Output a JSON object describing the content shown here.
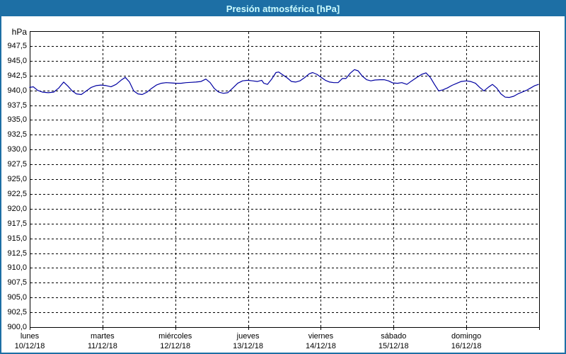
{
  "window": {
    "title": "Presión atmosférica [hPa]"
  },
  "colors": {
    "title_bar_bg": "#1d6fa5",
    "title_text": "#ccfcff",
    "frame_border": "#1d6fa5",
    "panel_bg": "#ffffff",
    "grid": "#000000",
    "axis": "#000000",
    "series_line": "#0000a1",
    "label_text": "#000000"
  },
  "axis": {
    "unit_label": "hPa"
  },
  "chart_data": {
    "type": "line",
    "title": "Presión atmosférica [hPa]",
    "ylabel": "hPa",
    "ylim": [
      900,
      950
    ],
    "ytick_step": 2.5,
    "yticks": [
      947.5,
      945.0,
      942.5,
      940.0,
      937.5,
      935.0,
      932.5,
      930.0,
      927.5,
      925.0,
      922.5,
      920.0,
      917.5,
      915.0,
      912.5,
      910.0,
      907.5,
      905.0,
      902.5,
      900.0
    ],
    "ytick_labels": [
      "947,5",
      "945,0",
      "942,5",
      "940,0",
      "937,5",
      "935,0",
      "932,5",
      "930,0",
      "927,5",
      "925,0",
      "922,5",
      "920,0",
      "917,5",
      "915,0",
      "912,5",
      "910,0",
      "907,5",
      "905,0",
      "902,5",
      "900,0"
    ],
    "grid": "dashed-black",
    "legend_position": "none",
    "x_axis": {
      "unit": "hours_since_monday_00h",
      "xlim": [
        0,
        168
      ],
      "hours_per_day": 24,
      "day_ticks": [
        {
          "name": "lunes",
          "date": "10/12/18"
        },
        {
          "name": "martes",
          "date": "11/12/18"
        },
        {
          "name": "miércoles",
          "date": "12/12/18"
        },
        {
          "name": "jueves",
          "date": "13/12/18"
        },
        {
          "name": "viernes",
          "date": "14/12/18"
        },
        {
          "name": "sábado",
          "date": "15/12/18"
        },
        {
          "name": "domingo",
          "date": "16/12/18"
        }
      ]
    },
    "series": [
      {
        "name": "Presión atmosférica",
        "color": "#0000a1",
        "x_hours": [
          0,
          1.2,
          2.6,
          4.2,
          6.1,
          7.9,
          9.6,
          11.2,
          12.6,
          14.0,
          15.4,
          17.0,
          18.7,
          20.3,
          21.9,
          23.6,
          25.2,
          26.8,
          28.5,
          30.1,
          31.5,
          32.9,
          34.3,
          35.7,
          37.1,
          38.7,
          40.1,
          41.8,
          43.4,
          45.0,
          46.7,
          48.3,
          49.9,
          51.6,
          53.2,
          54.8,
          56.5,
          58.1,
          59.5,
          60.9,
          62.3,
          63.9,
          65.3,
          67.0,
          68.6,
          70.2,
          71.9,
          73.5,
          75.1,
          76.5,
          77.2,
          78.4,
          79.8,
          81.2,
          82.1,
          83.5,
          84.9,
          86.3,
          87.7,
          89.1,
          90.8,
          92.2,
          93.3,
          94.7,
          96.1,
          97.5,
          98.9,
          100.3,
          101.7,
          103.1,
          104.3,
          105.7,
          107.1,
          108.3,
          109.7,
          111.1,
          112.5,
          113.9,
          115.5,
          116.9,
          118.3,
          119.7,
          121.3,
          122.7,
          124.4,
          126.0,
          127.9,
          129.3,
          130.7,
          132.1,
          133.5,
          134.9,
          136.3,
          137.7,
          139.3,
          140.9,
          142.3,
          144.0,
          145.4,
          147.0,
          148.4,
          149.8,
          151.2,
          152.6,
          154.0,
          155.4,
          156.8,
          158.2,
          159.6,
          161.0,
          162.4,
          163.8,
          165.2,
          166.6,
          167.8
        ],
        "values": [
          940.5,
          940.6,
          940.0,
          939.7,
          939.6,
          939.7,
          940.4,
          941.4,
          940.7,
          939.9,
          939.4,
          939.3,
          939.9,
          940.5,
          940.8,
          940.9,
          940.8,
          940.6,
          941.0,
          941.7,
          942.2,
          941.4,
          939.9,
          939.4,
          939.3,
          939.7,
          940.3,
          940.9,
          941.2,
          941.3,
          941.25,
          941.2,
          941.2,
          941.3,
          941.35,
          941.4,
          941.5,
          941.9,
          941.3,
          940.3,
          939.7,
          939.5,
          939.6,
          940.4,
          941.2,
          941.6,
          941.7,
          941.6,
          941.5,
          941.7,
          941.2,
          941.0,
          941.9,
          943.0,
          943.1,
          942.6,
          942.1,
          941.5,
          941.4,
          941.6,
          942.2,
          942.8,
          943.0,
          942.7,
          942.2,
          941.7,
          941.4,
          941.3,
          941.3,
          942.0,
          942.0,
          942.9,
          943.5,
          943.3,
          942.4,
          941.8,
          941.6,
          941.75,
          941.8,
          941.8,
          941.6,
          941.25,
          941.2,
          941.3,
          941.0,
          941.6,
          942.25,
          942.7,
          942.95,
          942.2,
          941.0,
          939.9,
          940.1,
          940.4,
          940.85,
          941.2,
          941.5,
          941.6,
          941.5,
          941.2,
          940.5,
          939.9,
          940.5,
          941.0,
          940.4,
          939.4,
          938.85,
          938.8,
          939.0,
          939.4,
          939.7,
          940.0,
          940.4,
          940.8,
          941.0
        ]
      }
    ]
  }
}
